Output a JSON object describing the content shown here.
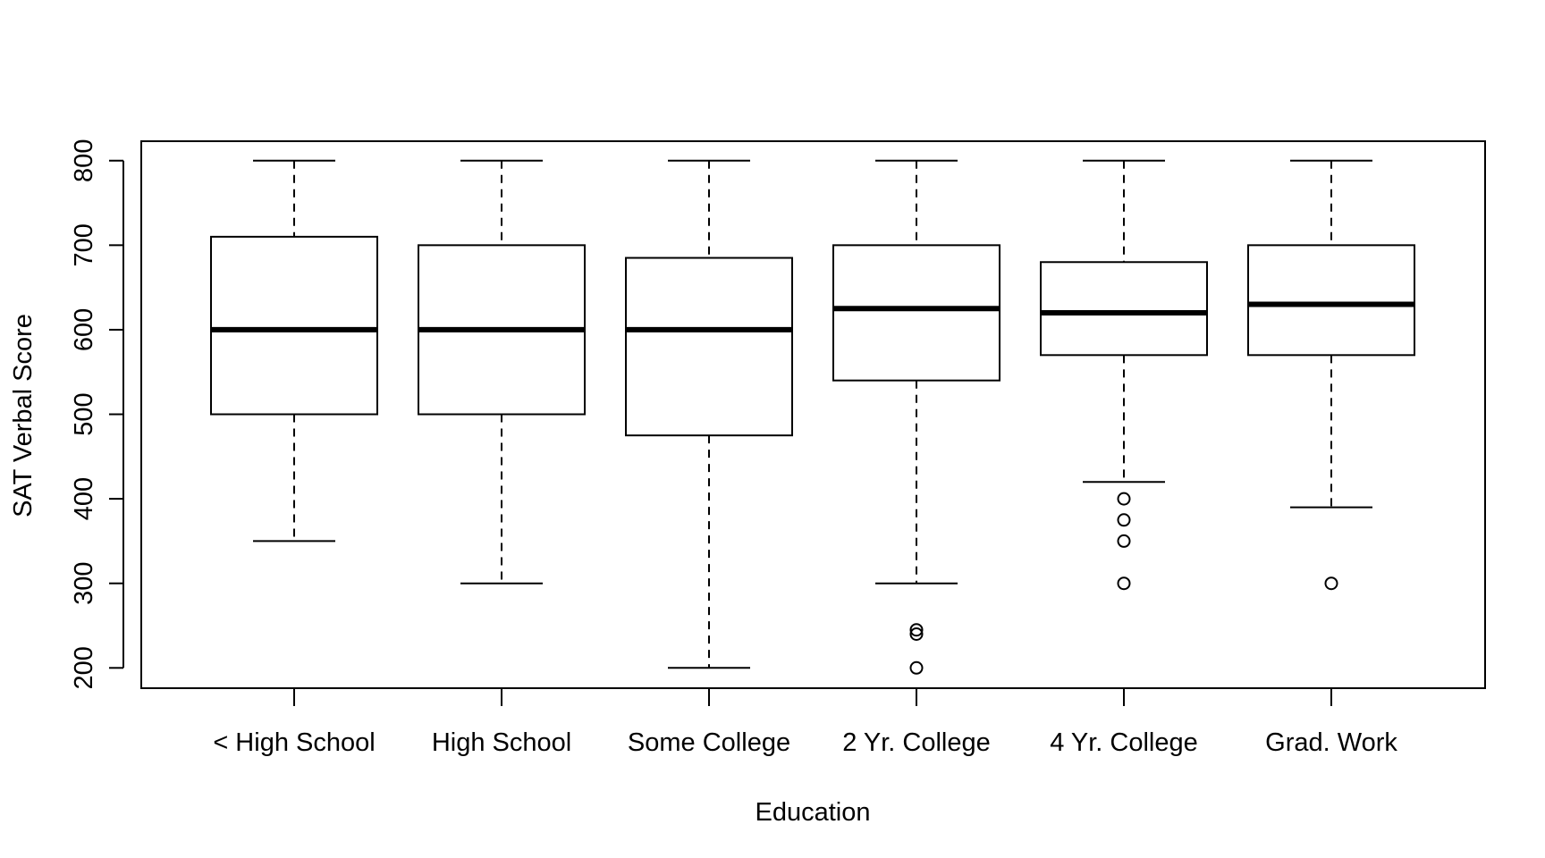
{
  "chart_data": {
    "type": "boxplot",
    "title": "",
    "xlabel": "Education",
    "ylabel": "SAT Verbal Score",
    "ylim": [
      176,
      823
    ],
    "yticks": [
      200,
      300,
      400,
      500,
      600,
      700,
      800
    ],
    "ytick_labels": [
      "200",
      "300",
      "400",
      "500",
      "600",
      "700",
      "800"
    ],
    "grid": false,
    "legend": "none",
    "categories": [
      "< High School",
      "High School",
      "Some College",
      "2 Yr. College",
      "4 Yr. College",
      "Grad. Work"
    ],
    "boxes": [
      {
        "whisker_low": 350,
        "q1": 500,
        "median": 600,
        "q3": 710,
        "whisker_high": 800,
        "outliers": []
      },
      {
        "whisker_low": 300,
        "q1": 500,
        "median": 600,
        "q3": 700,
        "whisker_high": 800,
        "outliers": []
      },
      {
        "whisker_low": 200,
        "q1": 475,
        "median": 600,
        "q3": 685,
        "whisker_high": 800,
        "outliers": []
      },
      {
        "whisker_low": 300,
        "q1": 540,
        "median": 625,
        "q3": 700,
        "whisker_high": 800,
        "outliers": [
          245,
          240,
          200
        ]
      },
      {
        "whisker_low": 420,
        "q1": 570,
        "median": 620,
        "q3": 680,
        "whisker_high": 800,
        "outliers": [
          400,
          375,
          350,
          300
        ]
      },
      {
        "whisker_low": 390,
        "q1": 570,
        "median": 630,
        "q3": 700,
        "whisker_high": 800,
        "outliers": [
          300
        ]
      }
    ],
    "colors": {
      "stroke": "#000000",
      "box_fill": "#ffffff"
    }
  }
}
